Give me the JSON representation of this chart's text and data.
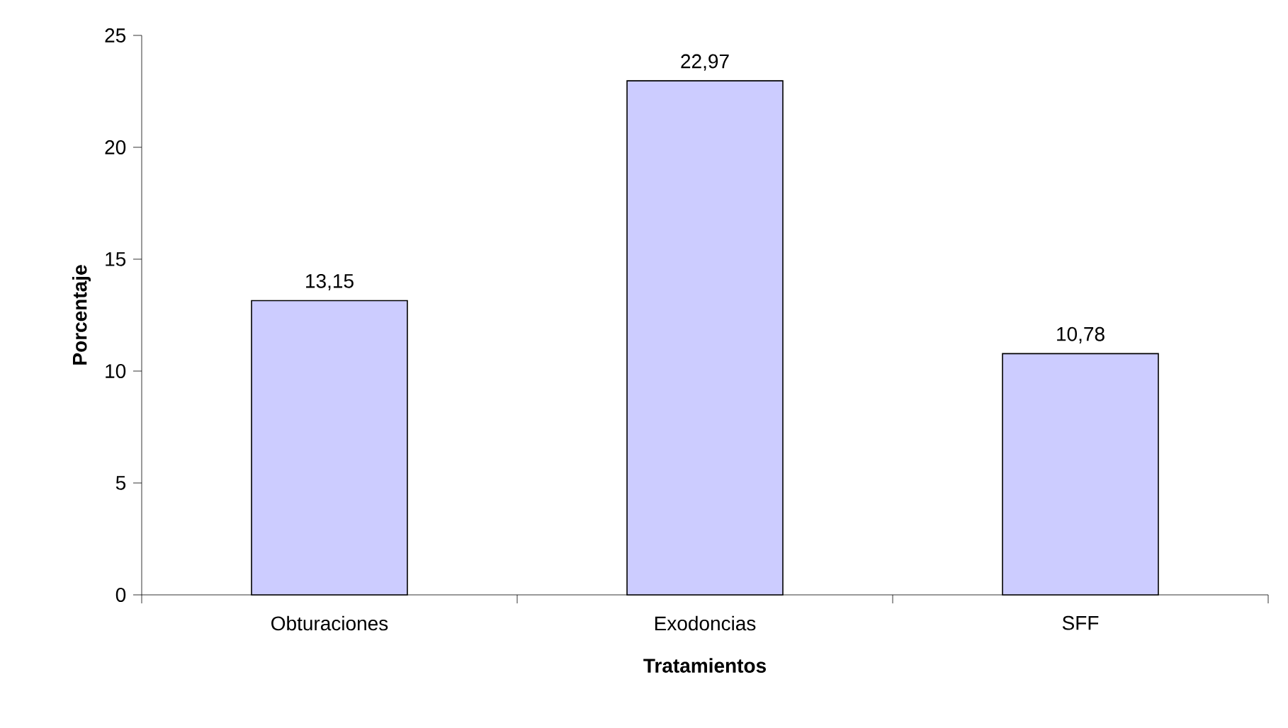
{
  "chart_data": {
    "type": "bar",
    "xlabel": "Tratamientos",
    "ylabel": "Porcentaje",
    "categories": [
      "Obturaciones",
      "Exodoncias",
      "SFF"
    ],
    "values": [
      13.15,
      22.97,
      10.78
    ],
    "value_labels": [
      "13,15",
      "22,97",
      "10,78"
    ],
    "color": "#ccccff",
    "ylim": [
      0,
      25
    ],
    "yticks": [
      0,
      5,
      10,
      15,
      20,
      25
    ],
    "grid": false
  }
}
